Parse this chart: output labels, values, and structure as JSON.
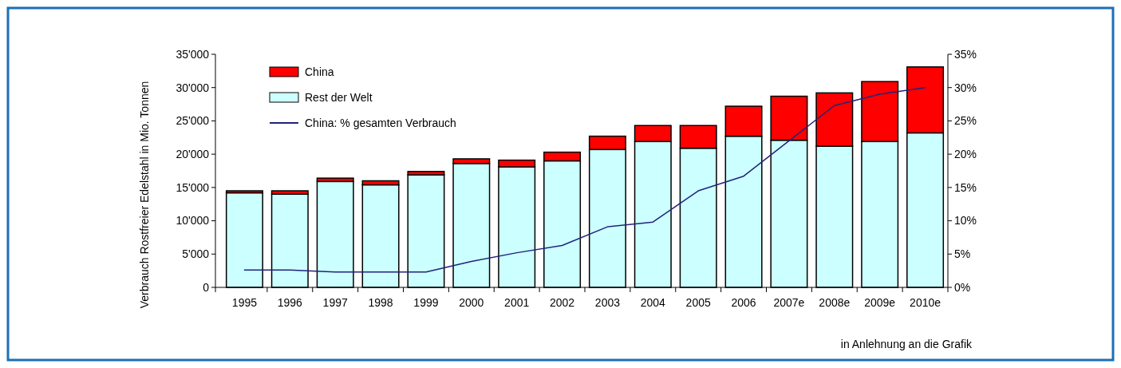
{
  "chart_data": {
    "type": "bar",
    "stacked": true,
    "ylabel": "Verbrauch Rostfreier Edelstahl in Mio.  Tonnen",
    "categories": [
      "1995",
      "1996",
      "1997",
      "1998",
      "1999",
      "2000",
      "2001",
      "2002",
      "2003",
      "2004",
      "2005",
      "2006",
      "2007e",
      "2008e",
      "2009e",
      "2010e"
    ],
    "series": [
      {
        "name": "Rest der Welt",
        "color": "#ccffff",
        "values": [
          14200,
          14000,
          15900,
          15400,
          16900,
          18600,
          18100,
          19000,
          20700,
          21900,
          20900,
          22700,
          22100,
          21200,
          21900,
          23200
        ]
      },
      {
        "name": "China",
        "color": "#ff0000",
        "values": [
          300,
          500,
          500,
          600,
          500,
          700,
          1000,
          1300,
          2000,
          2400,
          3400,
          4500,
          6600,
          8000,
          9000,
          9900
        ]
      },
      {
        "name": "China: % gesamten Verbrauch",
        "type": "line",
        "axis": "y2",
        "color": "#22227a",
        "values": [
          2.6,
          2.6,
          2.3,
          2.3,
          2.3,
          3.9,
          5.2,
          6.3,
          9.1,
          9.8,
          14.5,
          16.7,
          22,
          27.3,
          29,
          30
        ]
      }
    ],
    "ylim": [
      0,
      35000
    ],
    "yticks": [
      0,
      {
        "value": 5000,
        "label": "5'000"
      },
      {
        "value": 10000,
        "label": "10'000"
      },
      {
        "value": 15000,
        "label": "15'000"
      },
      {
        "value": 20000,
        "label": "20'000"
      },
      {
        "value": 25000,
        "label": "25'000"
      },
      {
        "value": 30000,
        "label": "30'000"
      },
      {
        "value": 35000,
        "label": "35'000"
      }
    ],
    "y2lim": [
      0,
      35
    ],
    "y2ticks": [
      {
        "value": 0,
        "label": "0%"
      },
      {
        "value": 5,
        "label": "5%"
      },
      {
        "value": 10,
        "label": "10%"
      },
      {
        "value": 15,
        "label": "15%"
      },
      {
        "value": 20,
        "label": "20%"
      },
      {
        "value": 25,
        "label": "25%"
      },
      {
        "value": 30,
        "label": "30%"
      },
      {
        "value": 35,
        "label": "35%"
      }
    ],
    "legend": "top left",
    "annotations": [
      "in Anlehnung an die Grafik"
    ]
  }
}
